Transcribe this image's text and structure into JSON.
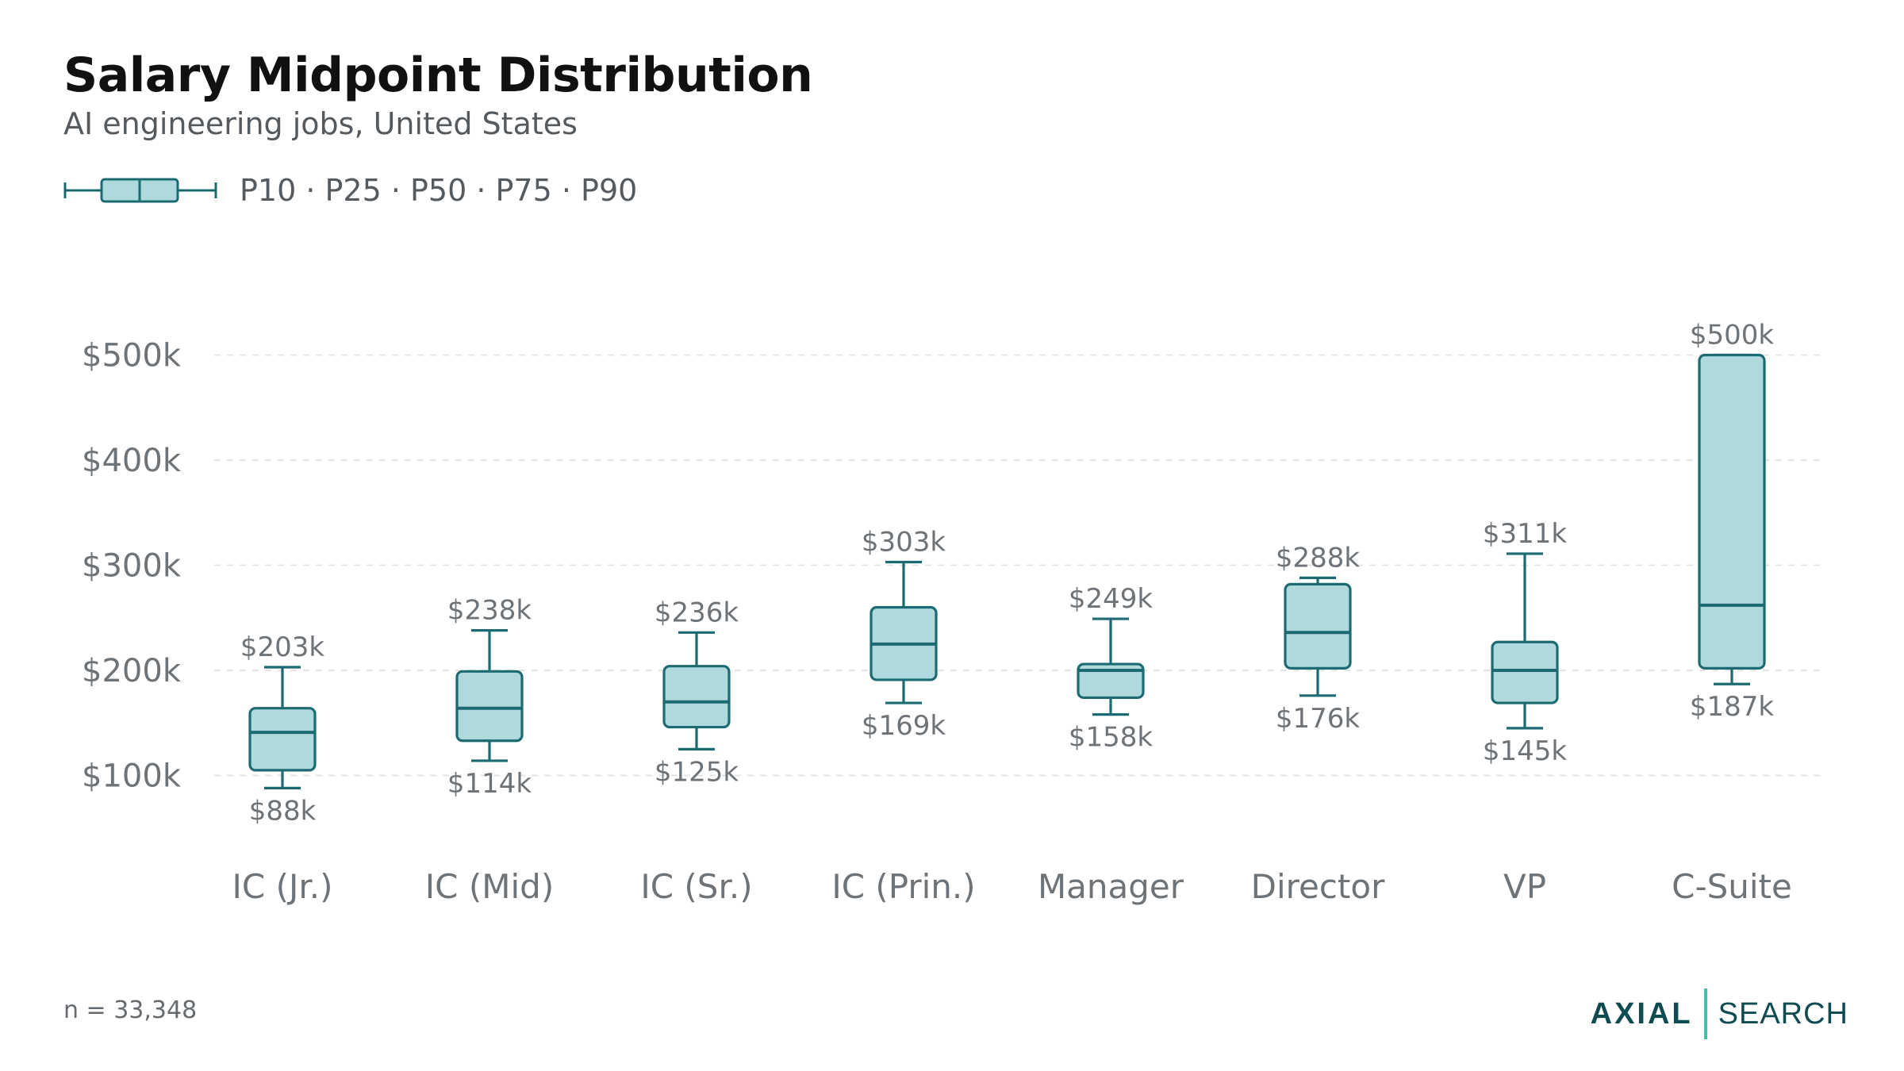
{
  "title": "Salary Midpoint Distribution",
  "subtitle": "AI engineering jobs, United States",
  "legend": {
    "label": "P10 · P25 · P50 · P75 · P90"
  },
  "footnote": "n = 33,348",
  "brand": {
    "name_left": "AXIAL",
    "name_right": "SEARCH"
  },
  "colors": {
    "box_fill": "#b0d9dd",
    "box_stroke": "#1c6b72",
    "grid": "#e3e3e3",
    "axis_text": "#6e7378",
    "label_text": "#6e7378"
  },
  "chart_data": {
    "type": "box",
    "categories": [
      "IC (Jr.)",
      "IC (Mid)",
      "IC (Sr.)",
      "IC (Prin.)",
      "Manager",
      "Director",
      "VP",
      "C-Suite"
    ],
    "series": [
      {
        "p10": [
          88,
          114,
          125,
          169,
          158,
          176,
          145,
          187
        ],
        "p25": [
          105,
          133,
          146,
          191,
          174,
          202,
          169,
          202
        ],
        "p50": [
          141,
          164,
          170,
          225,
          200,
          236,
          200,
          262
        ],
        "p75": [
          164,
          199,
          204,
          260,
          206,
          282,
          227,
          500
        ],
        "p90": [
          203,
          238,
          236,
          303,
          249,
          288,
          311,
          500
        ]
      }
    ],
    "labels": {
      "top": [
        "$203k",
        "$238k",
        "$236k",
        "$303k",
        "$249k",
        "$288k",
        "$311k",
        "$500k"
      ],
      "bottom": [
        "$88k",
        "$114k",
        "$125k",
        "$169k",
        "$158k",
        "$176k",
        "$145k",
        "$187k"
      ]
    },
    "yticks": [
      100,
      200,
      300,
      400,
      500
    ],
    "ytick_labels": [
      "$100k",
      "$200k",
      "$300k",
      "$400k",
      "$500k"
    ],
    "unit": "k USD",
    "grid": true
  }
}
